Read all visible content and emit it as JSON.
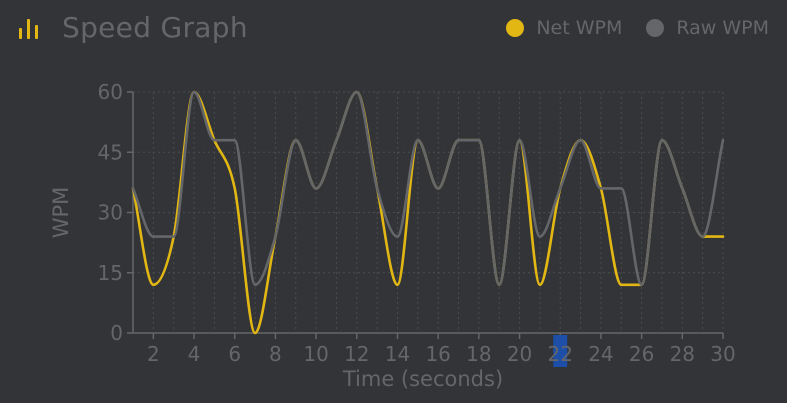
{
  "header": {
    "title": "Speed Graph",
    "icon": "bar-chart-icon"
  },
  "colors": {
    "background": "#323437",
    "net": "#e2b714",
    "raw": "#646669",
    "text": "#646669",
    "highlight": "#1e4fa8"
  },
  "chart_data": {
    "type": "line",
    "xlabel": "Time (seconds)",
    "ylabel": "WPM",
    "xlim": [
      1,
      30
    ],
    "ylim": [
      0,
      60
    ],
    "x_ticks": [
      2,
      4,
      6,
      8,
      10,
      12,
      14,
      16,
      18,
      20,
      22,
      24,
      26,
      28,
      30
    ],
    "y_ticks": [
      0,
      15,
      30,
      45,
      60
    ],
    "highlighted_x_tick": 22,
    "grid": true,
    "legend": "top-right",
    "x": [
      1,
      2,
      3,
      4,
      5,
      6,
      7,
      8,
      9,
      10,
      11,
      12,
      13,
      14,
      15,
      16,
      17,
      18,
      19,
      20,
      21,
      22,
      23,
      24,
      25,
      26,
      27,
      28,
      29,
      30
    ],
    "series": [
      {
        "name": "Net WPM",
        "values": [
          36,
          12,
          24,
          60,
          48,
          36,
          0,
          24,
          48,
          36,
          48,
          60,
          36,
          12,
          48,
          36,
          48,
          48,
          12,
          48,
          12,
          36,
          48,
          36,
          12,
          12,
          48,
          36,
          24,
          24
        ]
      },
      {
        "name": "Raw WPM",
        "values": [
          36,
          24,
          24,
          60,
          48,
          48,
          12,
          24,
          48,
          36,
          48,
          60,
          36,
          24,
          48,
          36,
          48,
          48,
          12,
          48,
          24,
          36,
          48,
          36,
          36,
          12,
          48,
          36,
          24,
          48
        ]
      }
    ]
  }
}
